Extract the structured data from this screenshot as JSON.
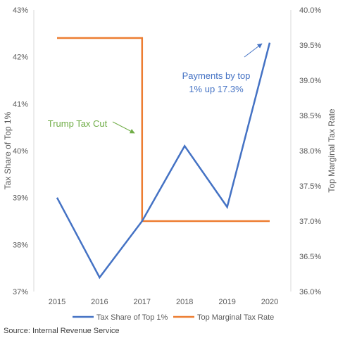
{
  "chart_data": {
    "type": "line",
    "categories": [
      "2015",
      "2016",
      "2017",
      "2018",
      "2019",
      "2020"
    ],
    "series": [
      {
        "name": "Tax Share of Top 1%",
        "axis": "left",
        "color": "#4472C4",
        "values": [
          39.0,
          37.3,
          38.5,
          40.1,
          38.8,
          42.3
        ]
      },
      {
        "name": "Top Marginal Tax Rate",
        "axis": "right",
        "color": "#ED7D31",
        "step": true,
        "values": [
          39.6,
          39.6,
          37.0,
          37.0,
          37.0,
          37.0
        ]
      }
    ],
    "y_left": {
      "label": "Tax Share of Top 1%",
      "min": 37,
      "max": 43,
      "step": 1,
      "ticks": [
        "37%",
        "38%",
        "39%",
        "40%",
        "41%",
        "42%",
        "43%"
      ]
    },
    "y_right": {
      "label": "Top Marginal Tax Rate",
      "min": 36.0,
      "max": 40.0,
      "step": 0.5,
      "ticks": [
        "36.0%",
        "36.5%",
        "37.0%",
        "37.5%",
        "38.0%",
        "38.5%",
        "39.0%",
        "39.5%",
        "40.0%"
      ]
    },
    "grid": false,
    "legend_position": "bottom",
    "annotations": {
      "payments": [
        "Payments by top",
        "1% up 17.3%"
      ],
      "trump": "Trump Tax Cut"
    },
    "source": "Source: Internal Revenue Service"
  }
}
